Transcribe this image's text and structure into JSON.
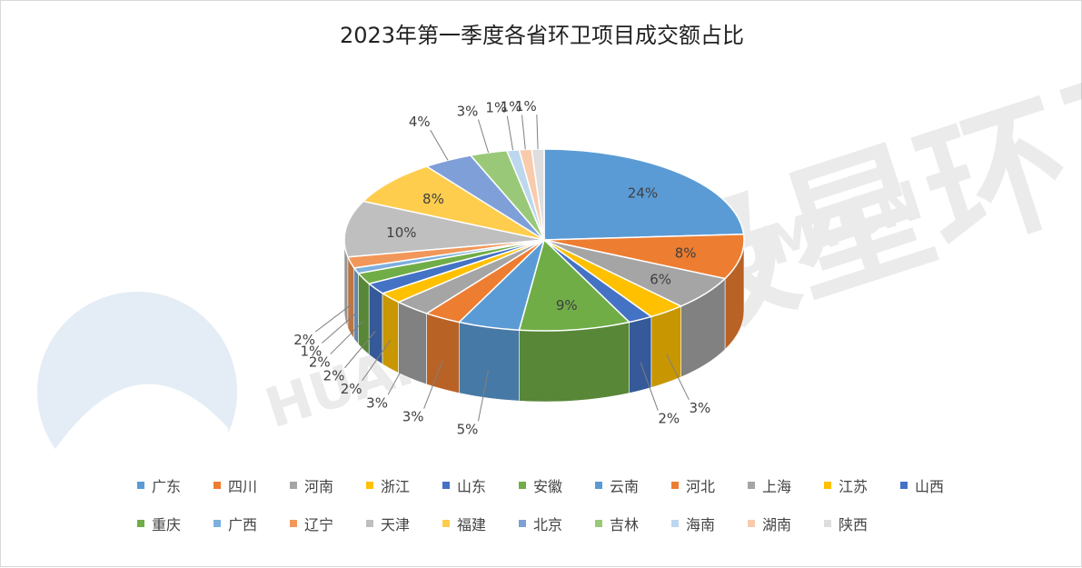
{
  "chart_data": {
    "type": "pie",
    "title": "2023年第一季度各省环卫项目成交额占比",
    "three_d": true,
    "legend_position": "bottom",
    "categories": [
      "广东",
      "四川",
      "河南",
      "浙江",
      "山东",
      "安徽",
      "云南",
      "河北",
      "上海",
      "江苏",
      "山西",
      "重庆",
      "广西",
      "辽宁",
      "天津",
      "福建",
      "北京",
      "吉林",
      "海南",
      "湖南",
      "陕西"
    ],
    "values": [
      24,
      8,
      6,
      3,
      2,
      9,
      5,
      3,
      3,
      2,
      2,
      2,
      1,
      2,
      10,
      8,
      4,
      3,
      1,
      1,
      1
    ],
    "data_labels": [
      "24%",
      "8%",
      "6%",
      "3%",
      "2%",
      "9%",
      "5%",
      "3%",
      "3%",
      "2%",
      "2%",
      "2%",
      "1%",
      "2%",
      "10%",
      "8%",
      "4%",
      "3%",
      "1%",
      "1%",
      "1%"
    ],
    "colors": [
      "#5B9BD5",
      "#ED7D31",
      "#A5A5A5",
      "#FFC000",
      "#4472C4",
      "#70AD47",
      "#5B9BD5",
      "#ED7D31",
      "#A5A5A5",
      "#FFC000",
      "#4472C4",
      "#70AD47",
      "#7CAFDD",
      "#F1975A",
      "#BFBFBF",
      "#FFCD4D",
      "#7F9FD8",
      "#99C978",
      "#BDD7EE",
      "#F8CBAD",
      "#DEDEDE"
    ]
  },
  "watermark": {
    "text_cn": "北极星环卫网",
    "text_en": "HUANWEI.BJX.COM.CN"
  }
}
